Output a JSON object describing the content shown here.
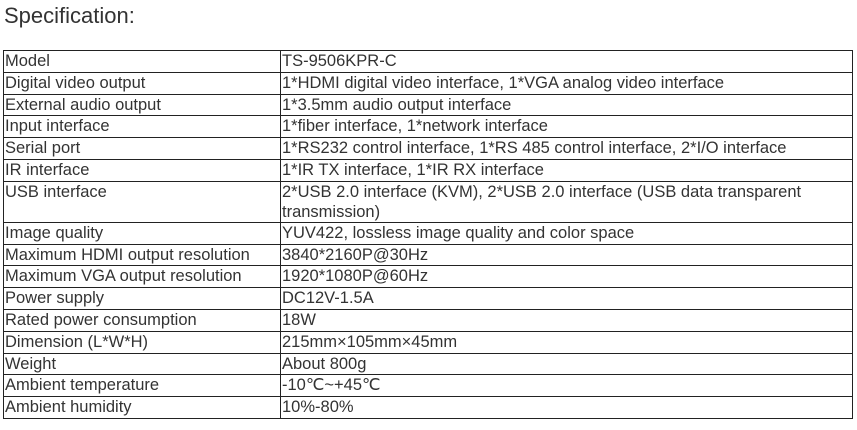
{
  "title": "Specification:",
  "rows": [
    {
      "k": "Model",
      "v": "TS-9506KPR-C"
    },
    {
      "k": "Digital video output",
      "v": "1*HDMI digital video interface, 1*VGA analog video interface"
    },
    {
      "k": "External audio output",
      "v": "1*3.5mm audio output interface"
    },
    {
      "k": "Input interface",
      "v": "1*fiber interface, 1*network interface"
    },
    {
      "k": "Serial port",
      "v": "1*RS232 control interface, 1*RS 485 control interface, 2*I/O interface"
    },
    {
      "k": "IR interface",
      "v": "1*IR TX interface, 1*IR RX interface"
    },
    {
      "k": "USB interface",
      "v": "2*USB 2.0 interface (KVM), 2*USB 2.0 interface (USB data transparent transmission)"
    },
    {
      "k": "Image quality",
      "v": "YUV422, lossless image quality and color space"
    },
    {
      "k": "Maximum HDMI output resolution",
      "v": "3840*2160P@30Hz"
    },
    {
      "k": "Maximum VGA output resolution",
      "v": "1920*1080P@60Hz"
    },
    {
      "k": "Power supply",
      "v": "DC12V-1.5A"
    },
    {
      "k": "Rated power consumption",
      "v": "18W"
    },
    {
      "k": "Dimension (L*W*H)",
      "v": "215mm×105mm×45mm"
    },
    {
      "k": "Weight",
      "v": "About 800g"
    },
    {
      "k": "Ambient temperature",
      "v": "-10℃~+45℃"
    },
    {
      "k": "Ambient humidity",
      "v": "10%-80%"
    }
  ]
}
